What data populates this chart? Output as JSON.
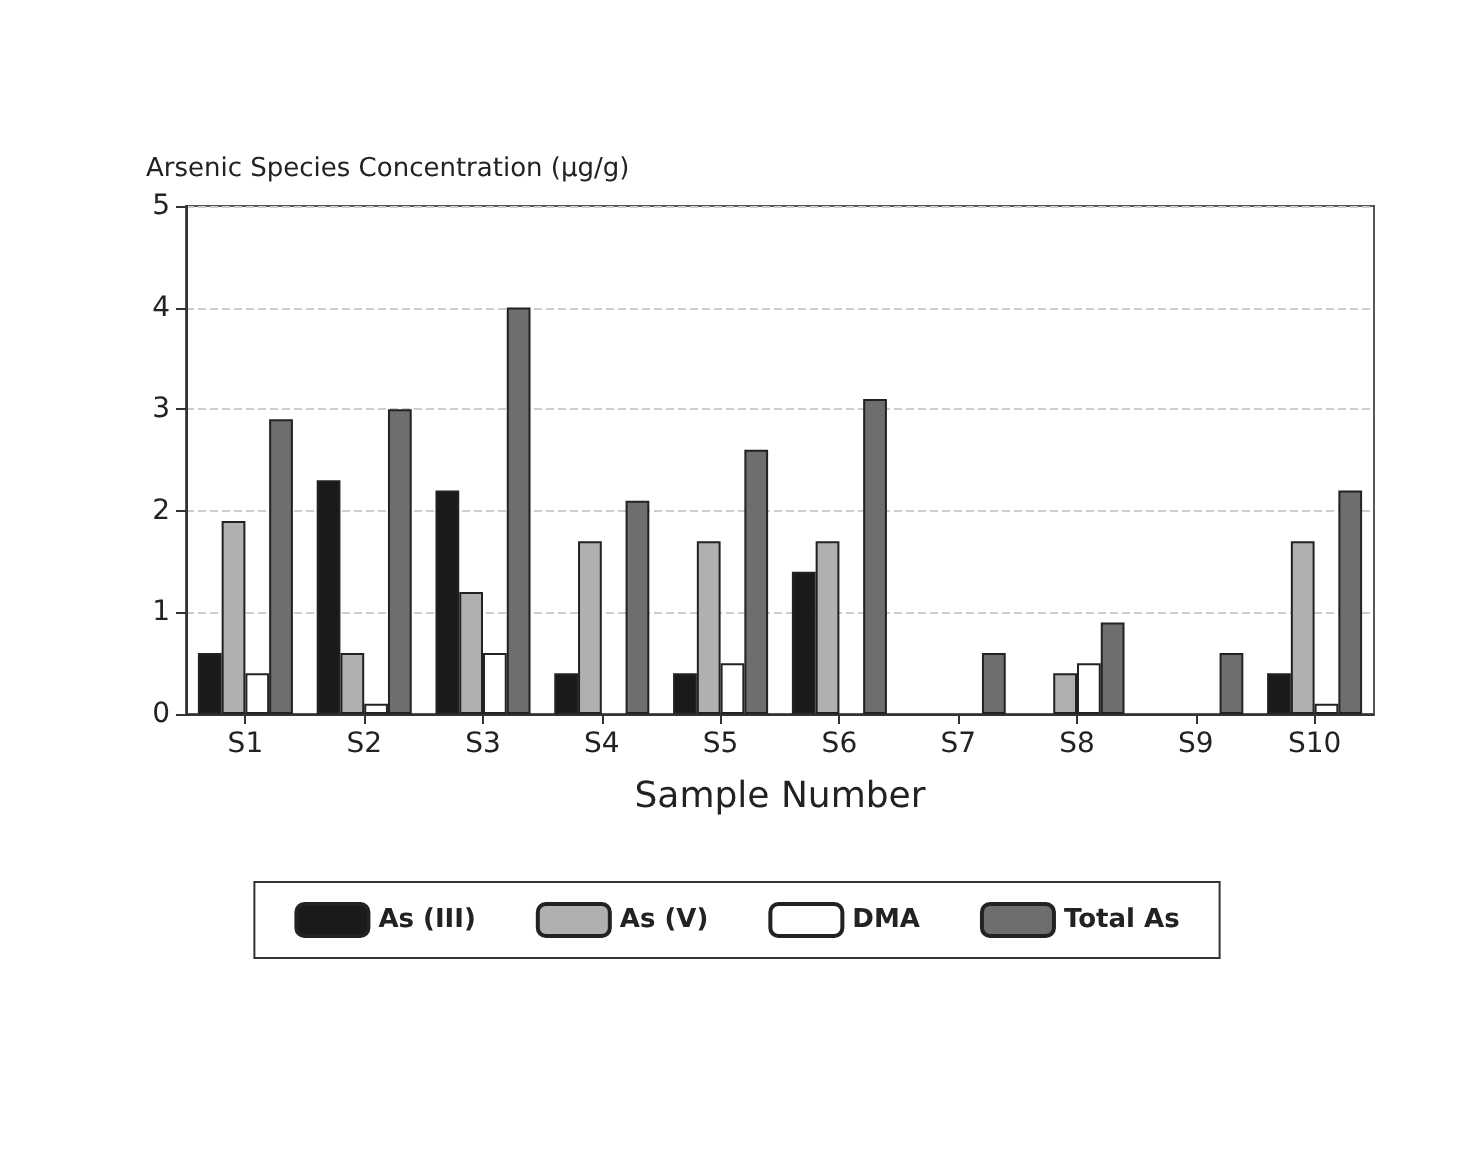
{
  "chart_data": {
    "type": "bar",
    "ylabel": "Arsenic Species Concentration (μg/g)",
    "xlabel": "Sample Number",
    "categories": [
      "S1",
      "S2",
      "S3",
      "S4",
      "S5",
      "S6",
      "S7",
      "S8",
      "S9",
      "S10"
    ],
    "series": [
      {
        "name": "As (III)",
        "color": "#1a1a1a",
        "values": [
          0.6,
          2.3,
          2.2,
          0.4,
          0.4,
          1.4,
          0,
          0,
          0,
          0.4
        ]
      },
      {
        "name": "As (V)",
        "color": "#b0b0b0",
        "values": [
          1.9,
          0.6,
          1.2,
          1.7,
          1.7,
          1.7,
          0,
          0.4,
          0,
          1.7
        ]
      },
      {
        "name": "DMA",
        "color": "#ffffff",
        "values": [
          0.4,
          0.1,
          0.6,
          0,
          0.5,
          0,
          0,
          0.5,
          0,
          0.1
        ]
      },
      {
        "name": "Total As",
        "color": "#6e6e6e",
        "values": [
          2.9,
          3.0,
          4.0,
          2.1,
          2.6,
          3.1,
          0.6,
          0.9,
          0.6,
          2.2
        ]
      }
    ],
    "ylim": [
      0,
      5
    ],
    "yticks": [
      0,
      1,
      2,
      3,
      4,
      5
    ],
    "grid": "y",
    "legend": "bottom"
  }
}
